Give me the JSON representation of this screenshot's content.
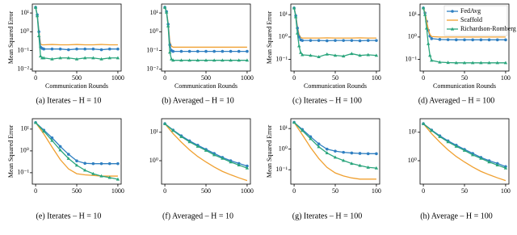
{
  "chart_data": [
    {
      "type": "line",
      "caption": "(a) Iterates – H = 10",
      "xlabel": "Communication Rounds",
      "ylabel": "Mean Squared Error",
      "log": true,
      "x": [
        0,
        20,
        40,
        60,
        80,
        100,
        200,
        300,
        400,
        500,
        600,
        700,
        800,
        900,
        1000
      ],
      "xlim": [
        -40,
        1040
      ],
      "xticks": [
        0,
        500,
        1000
      ],
      "ylim": [
        0.008,
        30
      ],
      "yticks": [
        {
          "value": 10,
          "label": "10¹"
        },
        {
          "value": 1,
          "label": "10⁰"
        },
        {
          "value": 0.1,
          "label": "10⁻¹"
        },
        {
          "value": 0.01,
          "label": "10⁻²"
        }
      ],
      "series": [
        {
          "color": "#f0a030",
          "values": [
            20,
            8,
            1.2,
            0.22,
            0.2,
            0.2,
            0.21,
            0.2,
            0.2,
            0.21,
            0.2,
            0.2,
            0.21,
            0.2,
            0.2
          ]
        },
        {
          "color": "#2f7fc1",
          "marker": "circle",
          "values": [
            20,
            8,
            1,
            0.15,
            0.13,
            0.12,
            0.12,
            0.12,
            0.11,
            0.12,
            0.12,
            0.12,
            0.11,
            0.12,
            0.12
          ]
        },
        {
          "color": "#2aa57c",
          "marker": "triangle",
          "values": [
            20,
            7,
            0.6,
            0.05,
            0.04,
            0.04,
            0.035,
            0.04,
            0.04,
            0.035,
            0.04,
            0.04,
            0.035,
            0.04,
            0.04
          ]
        }
      ]
    },
    {
      "type": "line",
      "caption": "(b) Averaged – H = 10",
      "xlabel": "Communication Rounds",
      "log": true,
      "x": [
        0,
        20,
        40,
        60,
        80,
        100,
        200,
        300,
        400,
        500,
        600,
        700,
        800,
        900,
        1000
      ],
      "xlim": [
        -40,
        1040
      ],
      "xticks": [
        0,
        500,
        1000
      ],
      "ylim": [
        0.008,
        30
      ],
      "yticks": [
        {
          "value": 10,
          "label": "10¹"
        },
        {
          "value": 1,
          "label": "10⁰"
        },
        {
          "value": 0.1,
          "label": "10⁻¹"
        },
        {
          "value": 0.01,
          "label": "10⁻²"
        }
      ],
      "series": [
        {
          "color": "#f0a030",
          "values": [
            20,
            12,
            3,
            0.3,
            0.17,
            0.15,
            0.15,
            0.15,
            0.15,
            0.15,
            0.15,
            0.15,
            0.15,
            0.15,
            0.15
          ]
        },
        {
          "color": "#2f7fc1",
          "marker": "circle",
          "values": [
            20,
            12,
            2.5,
            0.2,
            0.1,
            0.09,
            0.09,
            0.09,
            0.09,
            0.09,
            0.09,
            0.09,
            0.09,
            0.09,
            0.09
          ]
        },
        {
          "color": "#2aa57c",
          "marker": "triangle",
          "values": [
            20,
            11,
            2,
            0.08,
            0.035,
            0.03,
            0.03,
            0.03,
            0.03,
            0.03,
            0.03,
            0.03,
            0.03,
            0.03,
            0.03
          ]
        }
      ]
    },
    {
      "type": "line",
      "caption": "(c) Iterates – H = 100",
      "xlabel": "Communication Rounds",
      "ylabel": "Mean Squared Error",
      "log": true,
      "x": [
        0,
        2,
        4,
        6,
        8,
        10,
        20,
        30,
        40,
        50,
        60,
        70,
        80,
        90,
        100
      ],
      "xlim": [
        -4,
        104
      ],
      "xticks": [
        0,
        50,
        100
      ],
      "ylim": [
        0.03,
        30
      ],
      "yticks": [
        {
          "value": 10,
          "label": "10¹"
        },
        {
          "value": 1,
          "label": "10⁰"
        },
        {
          "value": 0.1,
          "label": "10⁻¹"
        }
      ],
      "series": [
        {
          "color": "#f0a030",
          "values": [
            20,
            10,
            3,
            1.3,
            0.95,
            0.9,
            0.9,
            0.9,
            0.92,
            0.9,
            0.9,
            0.9,
            0.92,
            0.9,
            0.9
          ]
        },
        {
          "color": "#2f7fc1",
          "marker": "circle",
          "values": [
            20,
            9,
            2.5,
            1,
            0.75,
            0.7,
            0.7,
            0.7,
            0.68,
            0.7,
            0.7,
            0.7,
            0.68,
            0.7,
            0.7
          ]
        },
        {
          "color": "#2aa57c",
          "marker": "triangle",
          "values": [
            20,
            8,
            1.5,
            0.4,
            0.2,
            0.16,
            0.15,
            0.13,
            0.17,
            0.15,
            0.14,
            0.18,
            0.15,
            0.16,
            0.15
          ]
        }
      ]
    },
    {
      "type": "line",
      "caption": "(d) Averaged – H = 100",
      "xlabel": "Communication Rounds",
      "log": true,
      "legend": "upper right",
      "x": [
        0,
        2,
        4,
        6,
        8,
        10,
        20,
        30,
        40,
        50,
        60,
        70,
        80,
        90,
        100
      ],
      "xlim": [
        -4,
        104
      ],
      "xticks": [
        0,
        50,
        100
      ],
      "ylim": [
        0.03,
        30
      ],
      "yticks": [
        {
          "value": 10,
          "label": "10¹"
        },
        {
          "value": 1,
          "label": "10⁰"
        },
        {
          "value": 0.1,
          "label": "10⁻¹"
        }
      ],
      "series": [
        {
          "name": "FedAvg",
          "color": "#2f7fc1",
          "marker": "circle",
          "values": [
            20,
            12,
            5,
            2,
            1.1,
            0.85,
            0.78,
            0.76,
            0.75,
            0.75,
            0.75,
            0.75,
            0.75,
            0.75,
            0.75
          ]
        },
        {
          "name": "Scaffold",
          "color": "#f0a030",
          "values": [
            20,
            12,
            5,
            2.2,
            1.3,
            1.05,
            1,
            1,
            1,
            1,
            1,
            1,
            1,
            1,
            1
          ]
        },
        {
          "name": "Richardson-Romberg",
          "color": "#2aa57c",
          "marker": "triangle",
          "values": [
            20,
            10,
            2.5,
            0.5,
            0.15,
            0.09,
            0.075,
            0.072,
            0.07,
            0.07,
            0.07,
            0.07,
            0.07,
            0.07,
            0.07
          ]
        }
      ]
    },
    {
      "type": "line",
      "caption": "(e) Iterates – H = 10",
      "ylabel": "Mean Squared Error",
      "log": true,
      "x": [
        0,
        100,
        200,
        300,
        400,
        500,
        600,
        700,
        800,
        900,
        1000
      ],
      "xlim": [
        -40,
        1040
      ],
      "xticks": [
        0,
        500,
        1000
      ],
      "ylim": [
        0.03,
        30
      ],
      "yticks": [
        {
          "value": 10,
          "label": "10¹"
        },
        {
          "value": 1,
          "label": "10⁰"
        },
        {
          "value": 0.1,
          "label": "10⁻¹"
        }
      ],
      "series": [
        {
          "color": "#f0a030",
          "values": [
            20,
            6,
            1.5,
            0.4,
            0.15,
            0.09,
            0.08,
            0.075,
            0.07,
            0.07,
            0.07
          ]
        },
        {
          "color": "#2f7fc1",
          "marker": "circle",
          "values": [
            20,
            9,
            4,
            1.6,
            0.7,
            0.35,
            0.27,
            0.26,
            0.26,
            0.26,
            0.26
          ]
        },
        {
          "color": "#2aa57c",
          "marker": "triangle",
          "values": [
            20,
            8,
            3,
            1.1,
            0.45,
            0.22,
            0.13,
            0.09,
            0.07,
            0.06,
            0.05
          ]
        }
      ]
    },
    {
      "type": "line",
      "caption": "(f) Averaged – H = 10",
      "log": true,
      "x": [
        0,
        100,
        200,
        300,
        400,
        500,
        600,
        700,
        800,
        900,
        1000
      ],
      "xlim": [
        -40,
        1040
      ],
      "xticks": [
        0,
        500,
        1000
      ],
      "ylim": [
        0.15,
        30
      ],
      "yticks": [
        {
          "value": 10,
          "label": "10¹"
        },
        {
          "value": 1,
          "label": "10⁰"
        }
      ],
      "series": [
        {
          "color": "#f0a030",
          "values": [
            20,
            9,
            4.5,
            2.4,
            1.4,
            0.9,
            0.6,
            0.42,
            0.32,
            0.25,
            0.2
          ]
        },
        {
          "color": "#2f7fc1",
          "marker": "circle",
          "values": [
            20,
            12,
            7.5,
            5,
            3.5,
            2.5,
            1.8,
            1.3,
            1,
            0.8,
            0.65
          ]
        },
        {
          "color": "#2aa57c",
          "marker": "triangle",
          "values": [
            20,
            11.5,
            7,
            4.6,
            3.2,
            2.3,
            1.6,
            1.2,
            0.9,
            0.7,
            0.55
          ]
        }
      ]
    },
    {
      "type": "line",
      "caption": "(g) Iterates – H = 100",
      "ylabel": "Mean Squared Error",
      "log": true,
      "x": [
        0,
        10,
        20,
        30,
        40,
        50,
        60,
        70,
        80,
        90,
        100
      ],
      "xlim": [
        -4,
        104
      ],
      "xticks": [
        0,
        50,
        100
      ],
      "ylim": [
        0.02,
        30
      ],
      "yticks": [
        {
          "value": 10,
          "label": "10¹"
        },
        {
          "value": 1,
          "label": "10⁰"
        },
        {
          "value": 0.1,
          "label": "10⁻¹"
        }
      ],
      "series": [
        {
          "color": "#f0a030",
          "values": [
            20,
            5,
            1.2,
            0.35,
            0.13,
            0.07,
            0.05,
            0.04,
            0.035,
            0.035,
            0.035
          ]
        },
        {
          "color": "#2f7fc1",
          "marker": "circle",
          "values": [
            20,
            9,
            4,
            1.8,
            1,
            0.8,
            0.7,
            0.65,
            0.62,
            0.6,
            0.6
          ]
        },
        {
          "color": "#2aa57c",
          "marker": "triangle",
          "values": [
            20,
            8,
            3.2,
            1.3,
            0.65,
            0.4,
            0.28,
            0.2,
            0.16,
            0.13,
            0.12
          ]
        }
      ]
    },
    {
      "type": "line",
      "caption": "(h) Average – H = 100",
      "log": true,
      "x": [
        0,
        10,
        20,
        30,
        40,
        50,
        60,
        70,
        80,
        90,
        100
      ],
      "xlim": [
        -4,
        104
      ],
      "xticks": [
        0,
        50,
        100
      ],
      "ylim": [
        0.15,
        30
      ],
      "yticks": [
        {
          "value": 10,
          "label": "10¹"
        },
        {
          "value": 1,
          "label": "10⁰"
        }
      ],
      "series": [
        {
          "color": "#f0a030",
          "values": [
            20,
            9,
            4.5,
            2.4,
            1.4,
            0.9,
            0.6,
            0.42,
            0.32,
            0.25,
            0.2
          ]
        },
        {
          "color": "#2f7fc1",
          "marker": "circle",
          "values": [
            20,
            12,
            7.5,
            5,
            3.5,
            2.5,
            1.8,
            1.3,
            1,
            0.8,
            0.62
          ]
        },
        {
          "color": "#2aa57c",
          "marker": "triangle",
          "values": [
            20,
            11.5,
            7,
            4.6,
            3.2,
            2.3,
            1.6,
            1.2,
            0.9,
            0.7,
            0.55
          ]
        }
      ]
    }
  ]
}
